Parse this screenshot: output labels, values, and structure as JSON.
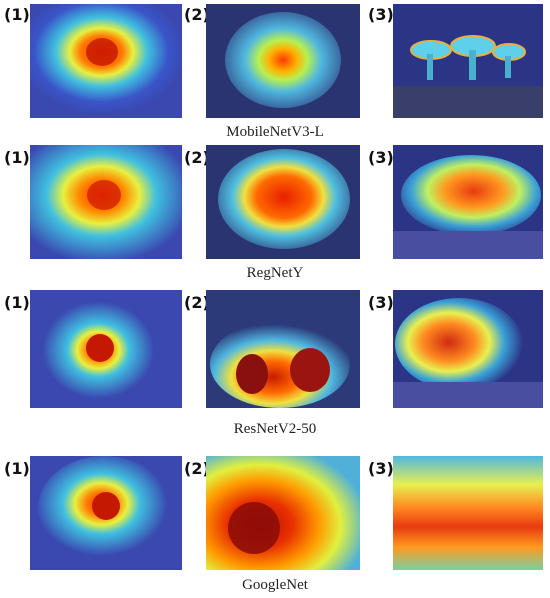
{
  "rows": [
    {
      "model": "MobileNetV3-L",
      "labels": [
        "(1)",
        "(2)",
        "(3)"
      ]
    },
    {
      "model": "RegNetY",
      "labels": [
        "(1)",
        "(2)",
        "(3)"
      ]
    },
    {
      "model": "ResNetV2-50",
      "labels": [
        "(1)",
        "(2)",
        "(3)"
      ]
    },
    {
      "model": "GoogleNet",
      "labels": [
        "(1)",
        "(2)",
        "(3)"
      ]
    }
  ]
}
